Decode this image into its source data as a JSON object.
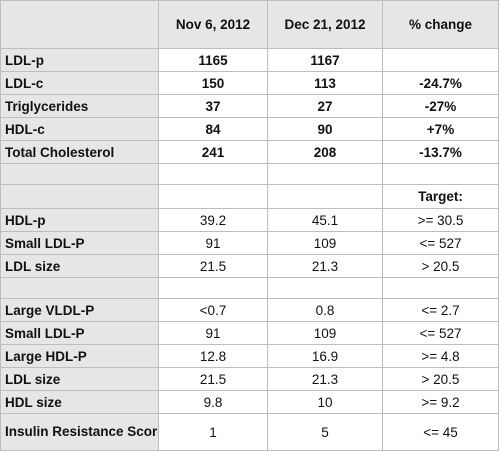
{
  "headers": [
    "",
    "Nov 6, 2012",
    "Dec 21, 2012",
    "% change"
  ],
  "section1": [
    {
      "label": "LDL-p",
      "nov": "1165",
      "dec": "1167",
      "change": ""
    },
    {
      "label": "LDL-c",
      "nov": "150",
      "dec": "113",
      "change": "-24.7%"
    },
    {
      "label": "Triglycerides",
      "nov": "37",
      "dec": "27",
      "change": "-27%"
    },
    {
      "label": "HDL-c",
      "nov": "84",
      "dec": "90",
      "change": "+7%"
    },
    {
      "label": "Total Cholesterol",
      "nov": "241",
      "dec": "208",
      "change": "-13.7%"
    }
  ],
  "target_label": "Target:",
  "section2": [
    {
      "label": "HDL-p",
      "nov": "39.2",
      "dec": "45.1",
      "target": ">= 30.5"
    },
    {
      "label": "Small LDL-P",
      "nov": "91",
      "dec": "109",
      "target": "<= 527"
    },
    {
      "label": "LDL size",
      "nov": "21.5",
      "dec": "21.3",
      "target": "> 20.5"
    }
  ],
  "section3": [
    {
      "label": "Large VLDL-P",
      "nov": "<0.7",
      "dec": "0.8",
      "target": "<= 2.7"
    },
    {
      "label": "Small LDL-P",
      "nov": "91",
      "dec": "109",
      "target": "<= 527"
    },
    {
      "label": "Large HDL-P",
      "nov": "12.8",
      "dec": "16.9",
      "target": ">= 4.8"
    },
    {
      "label": "LDL size",
      "nov": "21.5",
      "dec": "21.3",
      "target": "> 20.5"
    },
    {
      "label": "HDL size",
      "nov": "9.8",
      "dec": "10",
      "target": ">= 9.2"
    },
    {
      "label": "Insulin Resistance Score",
      "nov": "1",
      "dec": "5",
      "target": "<= 45"
    }
  ]
}
